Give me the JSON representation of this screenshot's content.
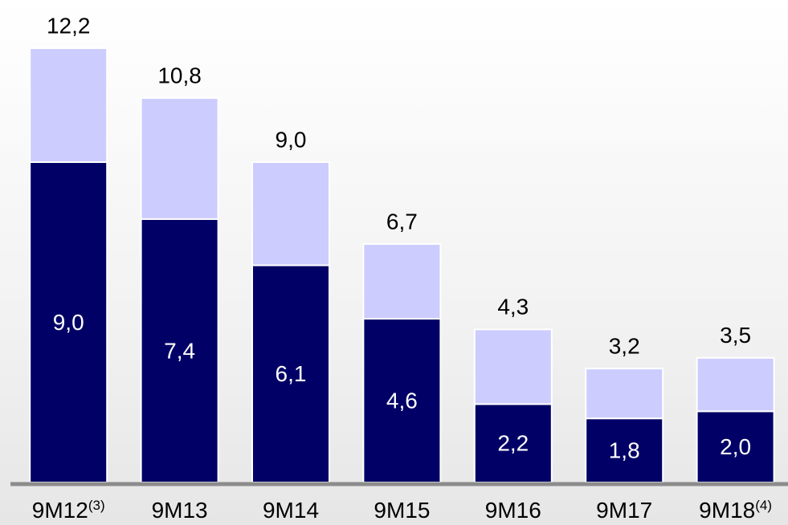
{
  "chart_data": {
    "type": "stacked-bar",
    "categories": [
      "9M12",
      "9M13",
      "9M14",
      "9M15",
      "9M16",
      "9M17",
      "9M18"
    ],
    "category_notes": [
      "(3)",
      null,
      null,
      null,
      null,
      null,
      "(4)"
    ],
    "series": [
      {
        "color": "#000066",
        "values": [
          9.0,
          7.4,
          6.1,
          4.6,
          2.2,
          1.8,
          2.0
        ],
        "value_labels": [
          "9,0",
          "7,4",
          "6,1",
          "4,6",
          "2,2",
          "1,8",
          "2,0"
        ]
      },
      {
        "color": "#ccccff",
        "values": [
          3.2,
          3.4,
          2.9,
          2.1,
          2.1,
          1.4,
          1.5
        ]
      }
    ],
    "totals": [
      12.2,
      10.8,
      9.0,
      6.7,
      4.3,
      3.2,
      3.5
    ],
    "total_labels": [
      "12,2",
      "10,8",
      "9,0",
      "6,7",
      "4,3",
      "3,2",
      "3,5"
    ],
    "ylim": [
      0,
      13.5
    ]
  }
}
